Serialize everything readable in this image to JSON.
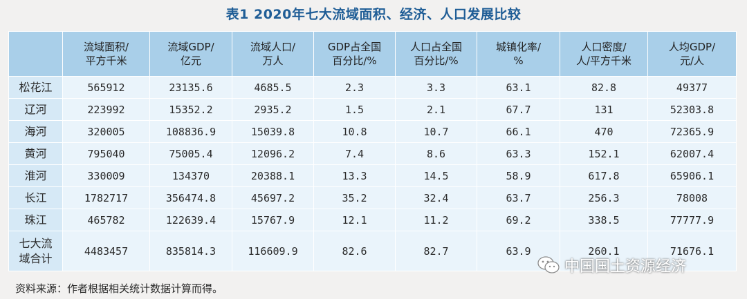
{
  "title": "表1  2020年七大流域面积、经济、人口发展比较",
  "headers": [
    {
      "lines": [
        ""
      ]
    },
    {
      "lines": [
        "流域面积/",
        "平方千米"
      ]
    },
    {
      "lines": [
        "流域GDP/",
        "亿元"
      ]
    },
    {
      "lines": [
        "流域人口/",
        "万人"
      ]
    },
    {
      "lines": [
        "GDP占全国",
        "百分比/%"
      ]
    },
    {
      "lines": [
        "人口占全国",
        "百分比/%"
      ]
    },
    {
      "lines": [
        "城镇化率/",
        "%"
      ]
    },
    {
      "lines": [
        "人口密度/",
        "人/平方千米"
      ]
    },
    {
      "lines": [
        "人均GDP/",
        "元/人"
      ]
    }
  ],
  "rows": [
    {
      "name": "松花江",
      "values": [
        "565912",
        "23135.6",
        "4685.5",
        "2.3",
        "3.3",
        "63.1",
        "82.8",
        "49377"
      ]
    },
    {
      "name": "辽河",
      "values": [
        "223992",
        "15352.2",
        "2935.2",
        "1.5",
        "2.1",
        "67.7",
        "131",
        "52303.8"
      ]
    },
    {
      "name": "海河",
      "values": [
        "320005",
        "108836.9",
        "15039.8",
        "10.8",
        "10.7",
        "66.1",
        "470",
        "72365.9"
      ]
    },
    {
      "name": "黄河",
      "values": [
        "795040",
        "75005.4",
        "12096.2",
        "7.4",
        "8.6",
        "63.3",
        "152.1",
        "62007.4"
      ]
    },
    {
      "name": "淮河",
      "values": [
        "330009",
        "134370",
        "20388.1",
        "13.3",
        "14.5",
        "58.9",
        "617.8",
        "65906.1"
      ]
    },
    {
      "name": "长江",
      "values": [
        "1782717",
        "356474.8",
        "45697.2",
        "35.2",
        "32.4",
        "63.7",
        "256.3",
        "78008"
      ]
    },
    {
      "name": "珠江",
      "values": [
        "465782",
        "122639.4",
        "15767.9",
        "12.1",
        "11.2",
        "69.2",
        "338.5",
        "77777.9"
      ]
    }
  ],
  "total_row": {
    "name_lines": [
      "七大流",
      "域合计"
    ],
    "values": [
      "4483457",
      "835814.3",
      "116609.9",
      "82.6",
      "82.7",
      "63.9",
      "260.1",
      "71676.1"
    ]
  },
  "source": "资料来源：作者根据相关统计数据计算而得。",
  "watermark": "中国国土资源经济",
  "colors": {
    "title": "#1f5d96",
    "header_bg": "#a9cfe9",
    "name_bg": "#d6e9f6",
    "cell_bg": "#eaf4fb",
    "page_bg": "#f2f1f0"
  }
}
